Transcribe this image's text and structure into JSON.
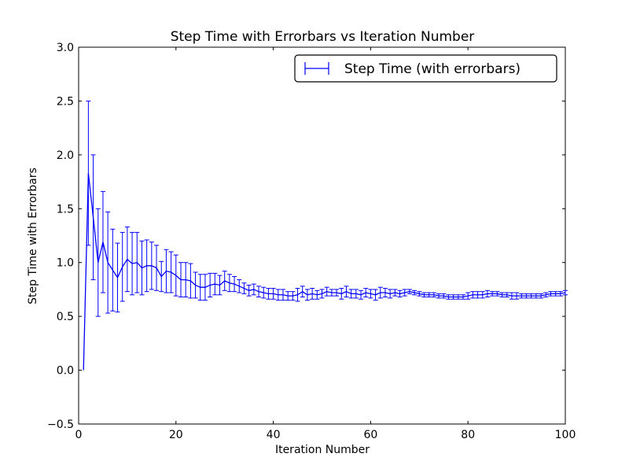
{
  "chart_data": {
    "type": "line",
    "title": "Step Time with Errorbars vs Iteration Number",
    "xlabel": "Iteration Number",
    "ylabel": "Step Time with Errorbars",
    "xlim": [
      0,
      100
    ],
    "ylim": [
      -0.5,
      3.0
    ],
    "xticks": [
      0,
      20,
      40,
      60,
      80,
      100
    ],
    "xtick_labels": [
      "0",
      "20",
      "40",
      "60",
      "80",
      "100"
    ],
    "yticks": [
      -0.5,
      0.0,
      0.5,
      1.0,
      1.5,
      2.0,
      2.5,
      3.0
    ],
    "ytick_labels": [
      "−0.5",
      "0.0",
      "0.5",
      "1.0",
      "1.5",
      "2.0",
      "2.5",
      "3.0"
    ],
    "grid": false,
    "legend_position": "top-right",
    "line_color": "#0000ff",
    "series": [
      {
        "name": "Step Time (with errorbars)",
        "x": [
          1,
          2,
          3,
          4,
          5,
          6,
          7,
          8,
          9,
          10,
          11,
          12,
          13,
          14,
          15,
          16,
          17,
          18,
          19,
          20,
          21,
          22,
          23,
          24,
          25,
          26,
          27,
          28,
          29,
          30,
          31,
          32,
          33,
          34,
          35,
          36,
          37,
          38,
          39,
          40,
          41,
          42,
          43,
          44,
          45,
          46,
          47,
          48,
          49,
          50,
          51,
          52,
          53,
          54,
          55,
          56,
          57,
          58,
          59,
          60,
          61,
          62,
          63,
          64,
          65,
          66,
          67,
          68,
          69,
          70,
          71,
          72,
          73,
          74,
          75,
          76,
          77,
          78,
          79,
          80,
          81,
          82,
          83,
          84,
          85,
          86,
          87,
          88,
          89,
          90,
          91,
          92,
          93,
          94,
          95,
          96,
          97,
          98,
          99,
          100
        ],
        "y": [
          0.0,
          1.83,
          1.42,
          1.0,
          1.19,
          1.0,
          0.93,
          0.86,
          0.96,
          1.03,
          0.99,
          1.0,
          0.95,
          0.97,
          0.97,
          0.95,
          0.87,
          0.92,
          0.91,
          0.88,
          0.84,
          0.84,
          0.83,
          0.79,
          0.77,
          0.77,
          0.79,
          0.8,
          0.79,
          0.83,
          0.81,
          0.8,
          0.78,
          0.76,
          0.74,
          0.75,
          0.73,
          0.72,
          0.71,
          0.71,
          0.7,
          0.7,
          0.69,
          0.69,
          0.7,
          0.73,
          0.7,
          0.71,
          0.7,
          0.71,
          0.73,
          0.72,
          0.72,
          0.71,
          0.73,
          0.71,
          0.71,
          0.7,
          0.72,
          0.71,
          0.7,
          0.72,
          0.72,
          0.71,
          0.72,
          0.71,
          0.72,
          0.73,
          0.72,
          0.71,
          0.7,
          0.7,
          0.7,
          0.69,
          0.69,
          0.68,
          0.68,
          0.68,
          0.68,
          0.69,
          0.7,
          0.7,
          0.7,
          0.71,
          0.71,
          0.71,
          0.7,
          0.7,
          0.69,
          0.69,
          0.69,
          0.69,
          0.69,
          0.69,
          0.69,
          0.7,
          0.71,
          0.71,
          0.71,
          0.72
        ],
        "yerr": [
          0.0,
          0.67,
          0.58,
          0.5,
          0.47,
          0.47,
          0.38,
          0.32,
          0.32,
          0.3,
          0.29,
          0.28,
          0.25,
          0.24,
          0.22,
          0.21,
          0.14,
          0.2,
          0.19,
          0.19,
          0.16,
          0.16,
          0.16,
          0.12,
          0.12,
          0.12,
          0.11,
          0.1,
          0.09,
          0.09,
          0.08,
          0.07,
          0.06,
          0.05,
          0.05,
          0.05,
          0.05,
          0.05,
          0.05,
          0.05,
          0.05,
          0.05,
          0.04,
          0.04,
          0.06,
          0.05,
          0.05,
          0.05,
          0.04,
          0.04,
          0.04,
          0.03,
          0.03,
          0.05,
          0.05,
          0.04,
          0.04,
          0.04,
          0.04,
          0.04,
          0.05,
          0.05,
          0.04,
          0.04,
          0.03,
          0.03,
          0.03,
          0.02,
          0.02,
          0.02,
          0.02,
          0.02,
          0.02,
          0.02,
          0.02,
          0.02,
          0.02,
          0.02,
          0.02,
          0.03,
          0.03,
          0.03,
          0.03,
          0.03,
          0.02,
          0.02,
          0.02,
          0.02,
          0.03,
          0.03,
          0.02,
          0.02,
          0.02,
          0.02,
          0.02,
          0.02,
          0.02,
          0.02,
          0.02,
          0.02
        ]
      }
    ]
  }
}
